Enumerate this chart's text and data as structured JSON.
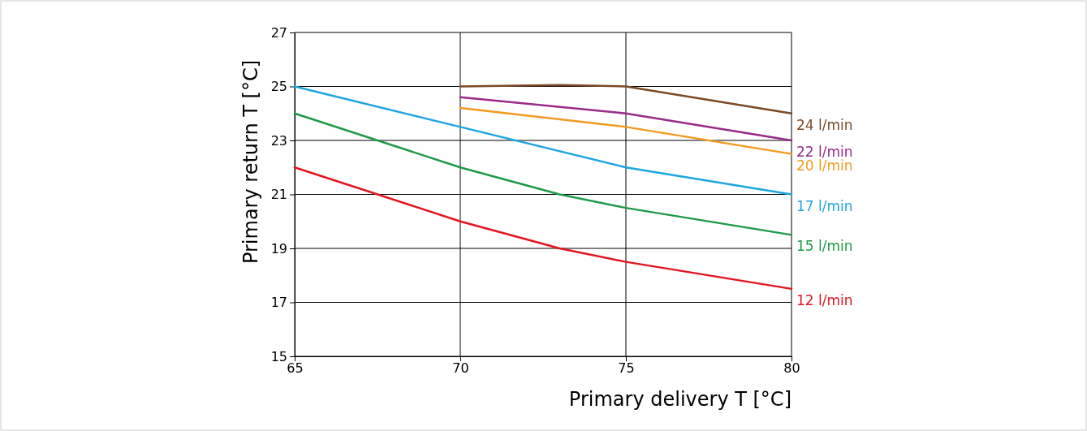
{
  "chart_data": {
    "type": "line",
    "xlabel": "Primary delivery T [°C]",
    "ylabel": "Primary return T [°C]",
    "xlim": [
      65,
      80
    ],
    "xticks": [
      65,
      70,
      75,
      80
    ],
    "ylim": [
      15,
      27
    ],
    "yticks": [
      15,
      17,
      19,
      21,
      23,
      25,
      27
    ],
    "grid": true,
    "series": [
      {
        "name": "24 l/min",
        "color": "#7b4a26",
        "x": [
          70,
          73,
          75,
          80
        ],
        "values": [
          25,
          25.05,
          25,
          24
        ]
      },
      {
        "name": "22 l/min",
        "color": "#9b2a8a",
        "x": [
          70,
          75,
          80
        ],
        "values": [
          24.6,
          24,
          23
        ]
      },
      {
        "name": "20 l/min",
        "color": "#f39a1e",
        "x": [
          70,
          75,
          80
        ],
        "values": [
          24.2,
          23.5,
          22.5
        ]
      },
      {
        "name": "17 l/min",
        "color": "#1ea6e0",
        "x": [
          65,
          70,
          75,
          80
        ],
        "values": [
          25,
          23.5,
          22,
          21
        ]
      },
      {
        "name": "15 l/min",
        "color": "#1f9a48",
        "x": [
          65,
          70,
          73,
          75,
          80
        ],
        "values": [
          24,
          22,
          21,
          20.5,
          19.5
        ]
      },
      {
        "name": "12 l/min",
        "color": "#e3151f",
        "x": [
          65,
          70,
          73,
          75,
          80
        ],
        "values": [
          22,
          20,
          19,
          18.5,
          17.5
        ]
      }
    ]
  }
}
